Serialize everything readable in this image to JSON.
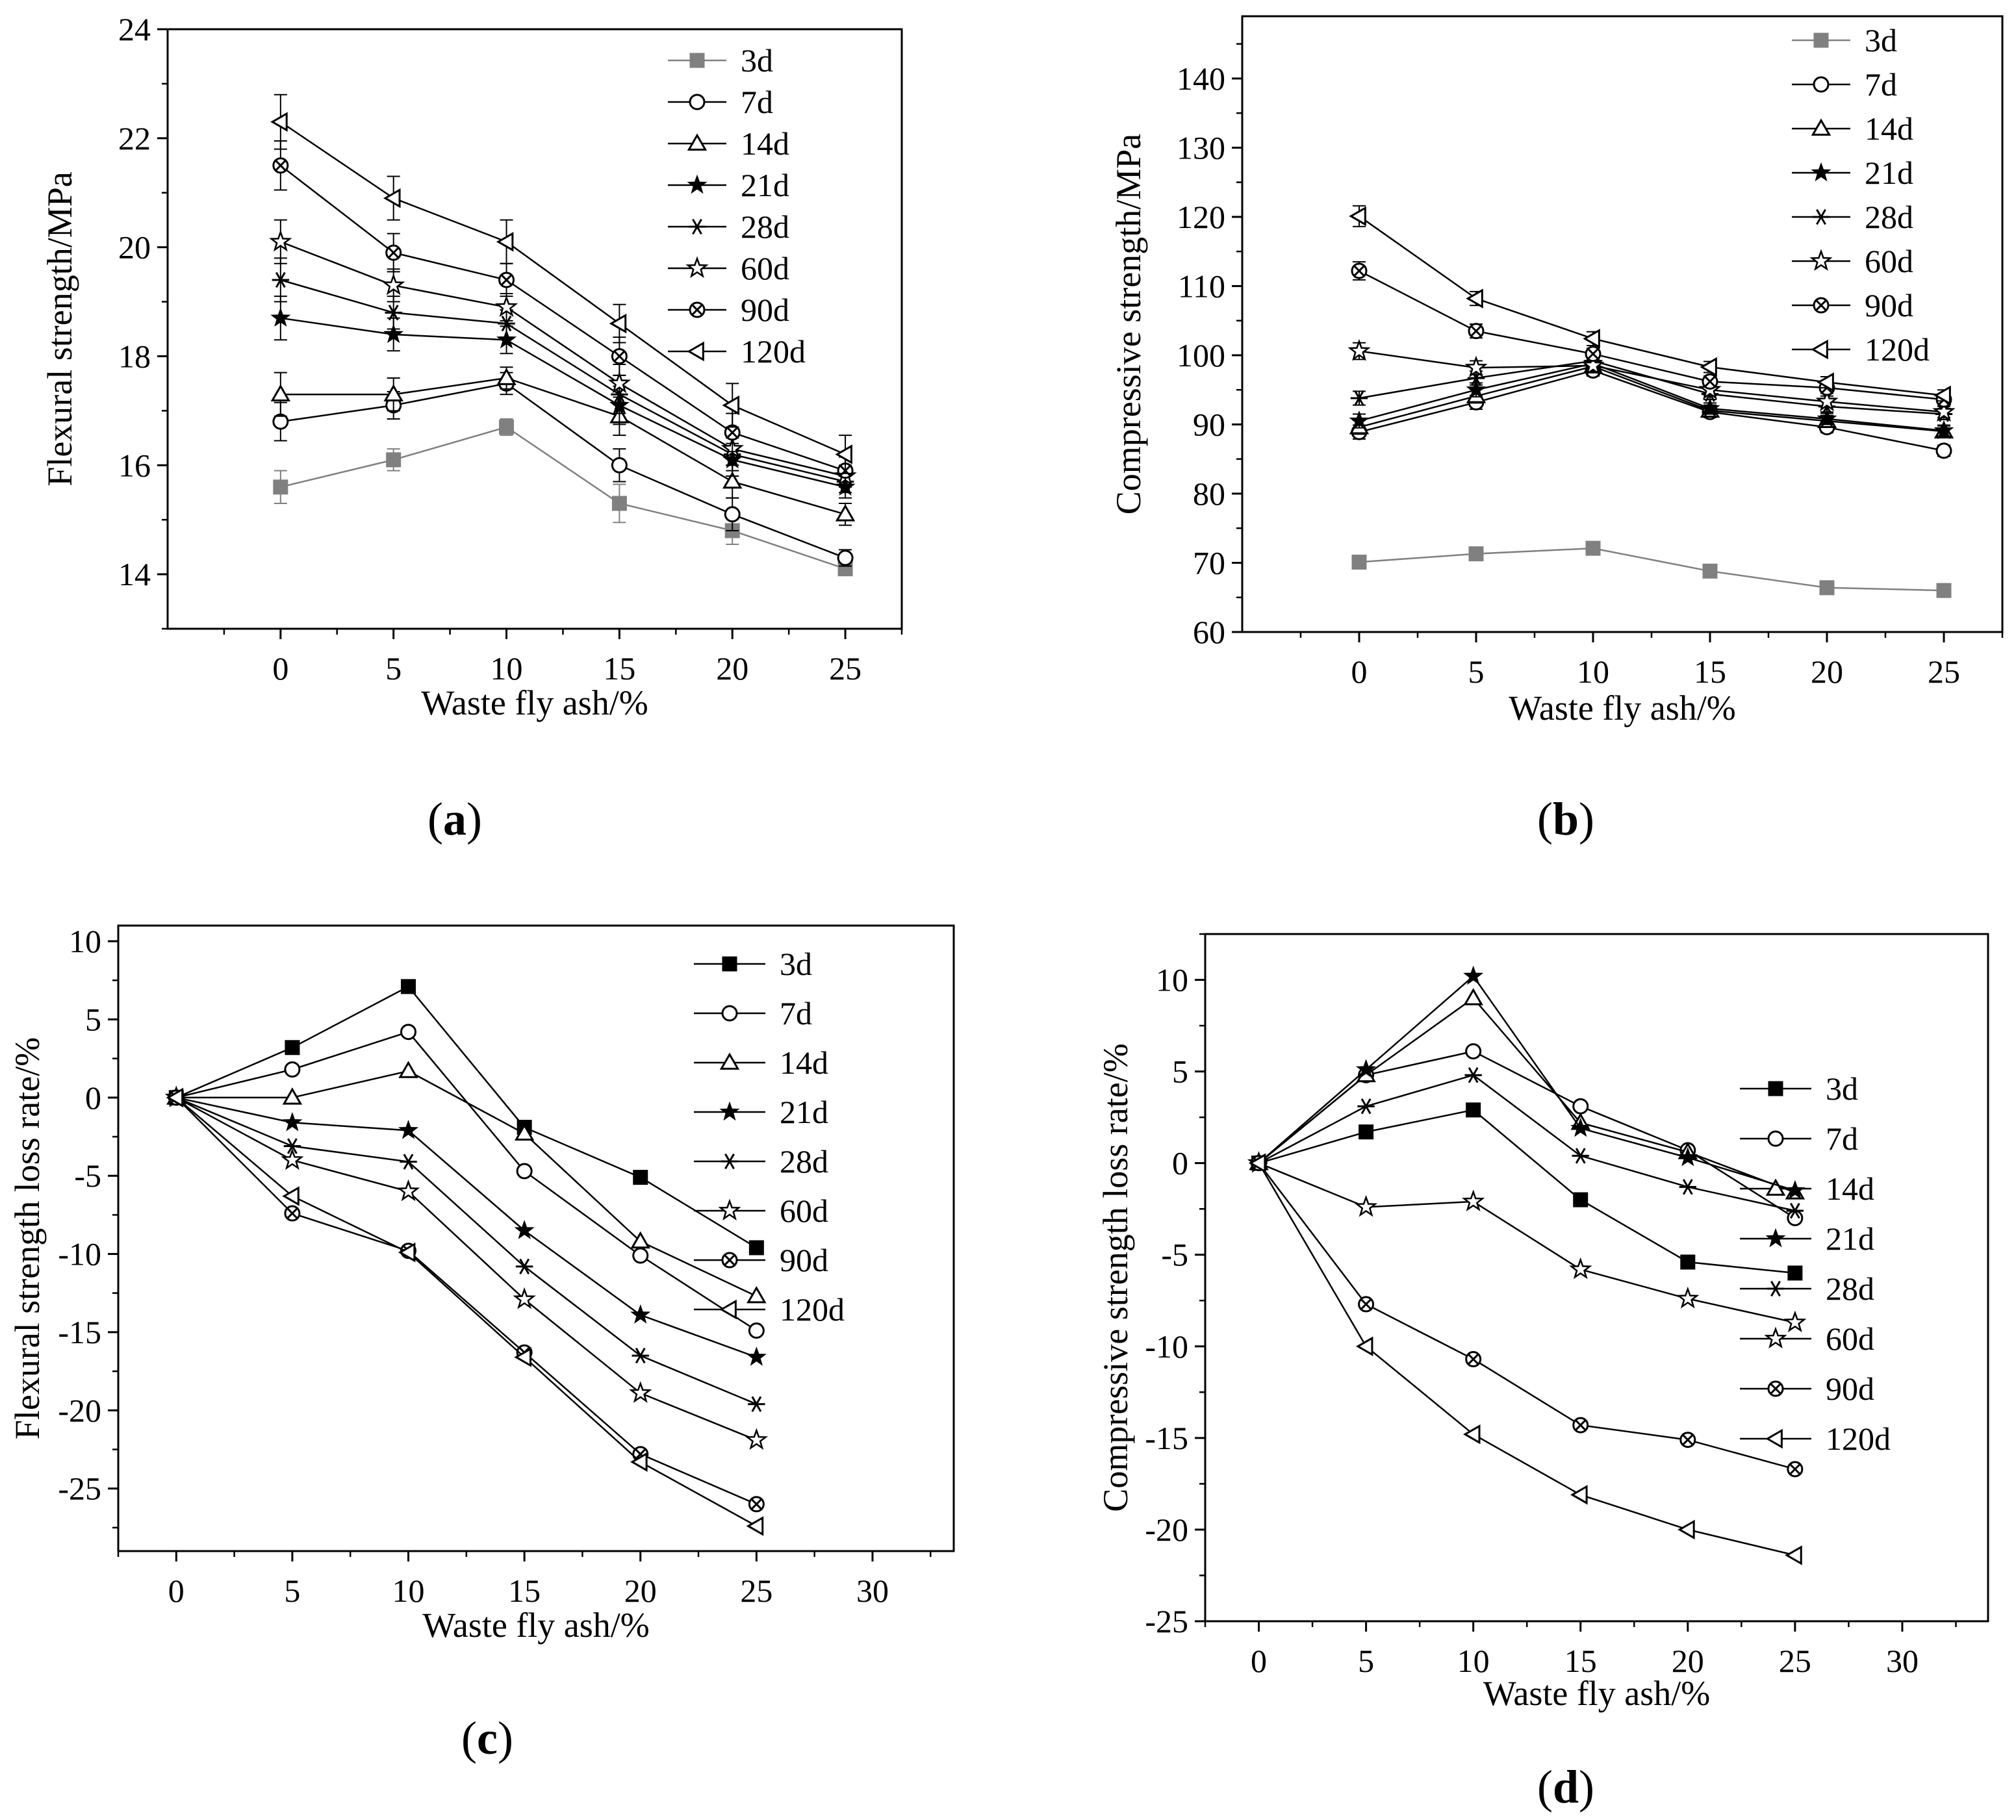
{
  "figure": {
    "panel_labels": [
      {
        "open": "(",
        "letter": "a",
        "close": ")"
      },
      {
        "open": "(",
        "letter": "b",
        "close": ")"
      },
      {
        "open": "(",
        "letter": "c",
        "close": ")"
      },
      {
        "open": "(",
        "letter": "d",
        "close": ")"
      }
    ]
  },
  "chart_data": [
    {
      "id": "a",
      "type": "line",
      "xlabel": "Waste fly ash/%",
      "ylabel": "Flexural strength/MPa",
      "xlim": [
        -5,
        27.5
      ],
      "ylim": [
        13,
        24
      ],
      "xticks": [
        0,
        5,
        10,
        15,
        20,
        25
      ],
      "yticks": [
        14,
        16,
        18,
        20,
        22,
        24
      ],
      "legend_position": "top-right",
      "error_bars": true,
      "x": [
        0,
        5,
        10,
        15,
        20,
        25
      ],
      "series": [
        {
          "name": "3d",
          "marker": "square-filled",
          "color": "#808080",
          "values": [
            15.6,
            16.1,
            16.7,
            15.3,
            14.8,
            14.1
          ],
          "errors": [
            0.3,
            0.2,
            0.15,
            0.35,
            0.25,
            0.1
          ]
        },
        {
          "name": "7d",
          "marker": "circle-open",
          "color": "#000000",
          "values": [
            16.8,
            17.1,
            17.5,
            16.0,
            15.1,
            14.3
          ],
          "errors": [
            0.35,
            0.25,
            0.2,
            0.3,
            0.3,
            0.15
          ]
        },
        {
          "name": "14d",
          "marker": "triangle-up-open",
          "color": "#000000",
          "values": [
            17.3,
            17.3,
            17.6,
            16.9,
            15.7,
            15.1
          ],
          "errors": [
            0.4,
            0.3,
            0.2,
            0.35,
            0.3,
            0.2
          ]
        },
        {
          "name": "21d",
          "marker": "star-filled",
          "color": "#000000",
          "values": [
            18.7,
            18.4,
            18.3,
            17.1,
            16.1,
            15.6
          ],
          "errors": [
            0.4,
            0.3,
            0.25,
            0.35,
            0.3,
            0.2
          ]
        },
        {
          "name": "28d",
          "marker": "asterisk",
          "color": "#000000",
          "values": [
            19.4,
            18.8,
            18.6,
            17.3,
            16.2,
            15.7
          ],
          "errors": [
            0.4,
            0.3,
            0.25,
            0.35,
            0.3,
            0.2
          ]
        },
        {
          "name": "60d",
          "marker": "star-open",
          "color": "#000000",
          "values": [
            20.1,
            19.3,
            18.9,
            17.5,
            16.3,
            15.8
          ],
          "errors": [
            0.4,
            0.3,
            0.25,
            0.35,
            0.3,
            0.2
          ]
        },
        {
          "name": "90d",
          "marker": "circle-x",
          "color": "#000000",
          "values": [
            21.5,
            19.9,
            19.4,
            18.0,
            16.6,
            15.9
          ],
          "errors": [
            0.45,
            0.35,
            0.3,
            0.35,
            0.35,
            0.25
          ]
        },
        {
          "name": "120d",
          "marker": "triangle-left-open",
          "color": "#000000",
          "values": [
            22.3,
            20.9,
            20.1,
            18.6,
            17.1,
            16.2
          ],
          "errors": [
            0.5,
            0.4,
            0.4,
            0.35,
            0.4,
            0.35
          ]
        }
      ]
    },
    {
      "id": "b",
      "type": "line",
      "xlabel": "Waste fly ash/%",
      "ylabel": "Compressive strength/MPa",
      "xlim": [
        -5,
        27.5
      ],
      "ylim": [
        60,
        149
      ],
      "xticks": [
        0,
        5,
        10,
        15,
        20,
        25
      ],
      "yticks": [
        60,
        70,
        80,
        90,
        100,
        110,
        120,
        130,
        140
      ],
      "legend_position": "top-right",
      "error_bars": true,
      "x": [
        0,
        5,
        10,
        15,
        20,
        25
      ],
      "series": [
        {
          "name": "3d",
          "marker": "square-filled",
          "color": "#808080",
          "values": [
            70.1,
            71.3,
            72.1,
            68.8,
            66.4,
            66.0
          ],
          "errors": [
            0.5,
            0.5,
            0.5,
            0.5,
            0.5,
            0.5
          ]
        },
        {
          "name": "7d",
          "marker": "circle-open",
          "color": "#000000",
          "values": [
            88.9,
            93.2,
            97.8,
            91.8,
            89.6,
            86.2
          ],
          "errors": [
            1.0,
            1.0,
            0.8,
            0.8,
            0.8,
            0.8
          ]
        },
        {
          "name": "14d",
          "marker": "triangle-up-open",
          "color": "#000000",
          "values": [
            89.6,
            94.1,
            98.4,
            92.0,
            90.5,
            89.0
          ],
          "errors": [
            1.0,
            1.0,
            0.8,
            0.8,
            0.8,
            0.8
          ]
        },
        {
          "name": "21d",
          "marker": "star-filled",
          "color": "#000000",
          "values": [
            90.5,
            95.0,
            98.8,
            92.3,
            90.8,
            89.1
          ],
          "errors": [
            1.0,
            1.0,
            0.8,
            0.8,
            0.8,
            0.8
          ]
        },
        {
          "name": "28d",
          "marker": "asterisk",
          "color": "#000000",
          "values": [
            93.8,
            96.7,
            99.2,
            94.4,
            92.6,
            91.5
          ],
          "errors": [
            1.0,
            1.0,
            0.8,
            0.8,
            0.8,
            0.8
          ]
        },
        {
          "name": "60d",
          "marker": "star-open",
          "color": "#000000",
          "values": [
            100.6,
            98.2,
            98.5,
            95.0,
            93.3,
            91.8
          ],
          "errors": [
            1.2,
            1.0,
            0.8,
            0.8,
            0.8,
            0.8
          ]
        },
        {
          "name": "90d",
          "marker": "circle-x",
          "color": "#000000",
          "values": [
            112.2,
            103.5,
            100.2,
            96.2,
            95.3,
            93.6
          ],
          "errors": [
            1.3,
            1.0,
            0.8,
            0.8,
            0.8,
            0.8
          ]
        },
        {
          "name": "120d",
          "marker": "triangle-left-open",
          "color": "#000000",
          "values": [
            120.1,
            108.2,
            102.4,
            98.3,
            96.1,
            94.2
          ],
          "errors": [
            1.5,
            1.0,
            1.0,
            0.8,
            0.8,
            0.8
          ]
        }
      ]
    },
    {
      "id": "c",
      "type": "line",
      "xlabel": "Waste fly ash/%",
      "ylabel": "Flexural strength loss rate/%",
      "xlim": [
        -2.5,
        33.5
      ],
      "ylim": [
        -29,
        11
      ],
      "xticks": [
        0,
        5,
        10,
        15,
        20,
        25,
        30
      ],
      "yticks": [
        -25,
        -20,
        -15,
        -10,
        -5,
        0,
        5,
        10
      ],
      "legend_position": "top-right",
      "error_bars": false,
      "x": [
        0,
        5,
        10,
        15,
        20,
        25
      ],
      "series": [
        {
          "name": "3d",
          "marker": "square-filled",
          "color": "#000000",
          "values": [
            0,
            3.2,
            7.1,
            -1.9,
            -5.1,
            -9.6
          ]
        },
        {
          "name": "7d",
          "marker": "circle-open",
          "color": "#000000",
          "values": [
            0,
            1.8,
            4.2,
            -4.7,
            -10.1,
            -14.9
          ]
        },
        {
          "name": "14d",
          "marker": "triangle-up-open",
          "color": "#000000",
          "values": [
            0,
            0.0,
            1.7,
            -2.3,
            -9.2,
            -12.7
          ]
        },
        {
          "name": "21d",
          "marker": "star-filled",
          "color": "#000000",
          "values": [
            0,
            -1.6,
            -2.1,
            -8.5,
            -13.9,
            -16.6
          ]
        },
        {
          "name": "28d",
          "marker": "asterisk",
          "color": "#000000",
          "values": [
            0,
            -3.1,
            -4.1,
            -10.8,
            -16.5,
            -19.6
          ]
        },
        {
          "name": "60d",
          "marker": "star-open",
          "color": "#000000",
          "values": [
            0,
            -4.0,
            -6.0,
            -12.9,
            -18.9,
            -21.9
          ]
        },
        {
          "name": "90d",
          "marker": "circle-x",
          "color": "#000000",
          "values": [
            0,
            -7.4,
            -9.8,
            -16.3,
            -22.8,
            -26.0
          ]
        },
        {
          "name": "120d",
          "marker": "triangle-left-open",
          "color": "#000000",
          "values": [
            0,
            -6.3,
            -9.9,
            -16.6,
            -23.3,
            -27.4
          ]
        }
      ]
    },
    {
      "id": "d",
      "type": "line",
      "xlabel": "Waste fly ash/%",
      "ylabel": "Compressive strength loss rate/%",
      "xlim": [
        -2.5,
        34
      ],
      "ylim": [
        -25,
        12.5
      ],
      "xticks": [
        0,
        5,
        10,
        15,
        20,
        25,
        30
      ],
      "yticks": [
        -25,
        -20,
        -15,
        -10,
        -5,
        0,
        5,
        10
      ],
      "legend_position": "right",
      "error_bars": false,
      "x": [
        0,
        5,
        10,
        15,
        20,
        25
      ],
      "series": [
        {
          "name": "3d",
          "marker": "square-filled",
          "color": "#000000",
          "values": [
            0,
            1.7,
            2.9,
            -2.0,
            -5.4,
            -6.0
          ]
        },
        {
          "name": "7d",
          "marker": "circle-open",
          "color": "#000000",
          "values": [
            0,
            4.8,
            6.1,
            3.1,
            0.7,
            -3.0
          ]
        },
        {
          "name": "14d",
          "marker": "triangle-up-open",
          "color": "#000000",
          "values": [
            0,
            4.8,
            9.0,
            2.2,
            0.6,
            -1.6
          ]
        },
        {
          "name": "21d",
          "marker": "star-filled",
          "color": "#000000",
          "values": [
            0,
            5.1,
            10.2,
            1.9,
            0.3,
            -1.5
          ]
        },
        {
          "name": "28d",
          "marker": "asterisk",
          "color": "#000000",
          "values": [
            0,
            3.1,
            4.8,
            0.4,
            -1.3,
            -2.6
          ]
        },
        {
          "name": "60d",
          "marker": "star-open",
          "color": "#000000",
          "values": [
            0,
            -2.4,
            -2.1,
            -5.8,
            -7.4,
            -8.7
          ]
        },
        {
          "name": "90d",
          "marker": "circle-x",
          "color": "#000000",
          "values": [
            0,
            -7.7,
            -10.7,
            -14.3,
            -15.1,
            -16.7
          ]
        },
        {
          "name": "120d",
          "marker": "triangle-left-open",
          "color": "#000000",
          "values": [
            0,
            -10.0,
            -14.8,
            -18.1,
            -20.0,
            -21.4
          ]
        }
      ]
    }
  ]
}
